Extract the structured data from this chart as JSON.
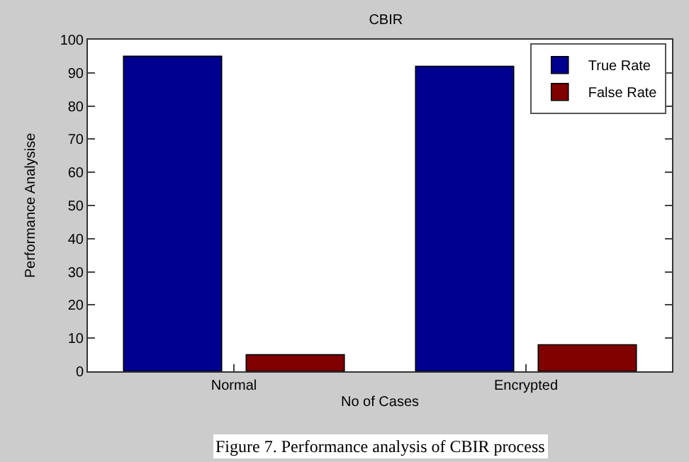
{
  "chart_data": {
    "type": "bar",
    "title": "CBIR",
    "xlabel": "No of Cases",
    "ylabel": "Performance Analysise",
    "categories": [
      "Normal",
      "Encrypted"
    ],
    "series": [
      {
        "name": "True Rate",
        "color": "#00008f",
        "values": [
          95,
          92
        ]
      },
      {
        "name": "False Rate",
        "color": "#800000",
        "values": [
          5,
          8
        ]
      }
    ],
    "ylim": [
      0,
      100
    ],
    "yticks": [
      0,
      10,
      20,
      30,
      40,
      50,
      60,
      70,
      80,
      90,
      100
    ],
    "legend": "top right",
    "annotations": [
      "Figure 7. Performance analysis of CBIR process"
    ]
  }
}
